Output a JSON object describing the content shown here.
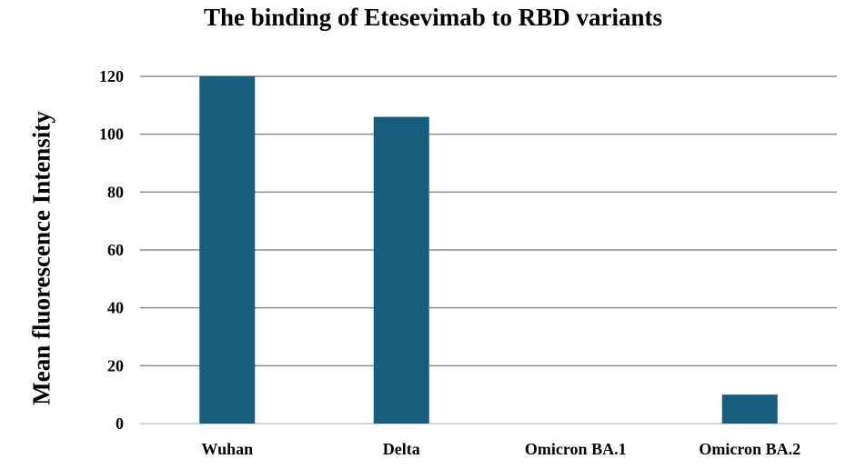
{
  "chart_data": {
    "type": "bar",
    "title": "The binding of Etesevimab to RBD variants",
    "xlabel": "",
    "ylabel": "Mean fluorescence Intensity",
    "categories": [
      "Wuhan",
      "Delta",
      "Omicron BA.1",
      "Omicron BA.2"
    ],
    "values": [
      120,
      106,
      0,
      10
    ],
    "ylim": [
      0,
      120
    ],
    "yticks": [
      0,
      20,
      40,
      60,
      80,
      100,
      120
    ],
    "grid": true,
    "legend": "none",
    "bar_color": "#175d7e"
  }
}
